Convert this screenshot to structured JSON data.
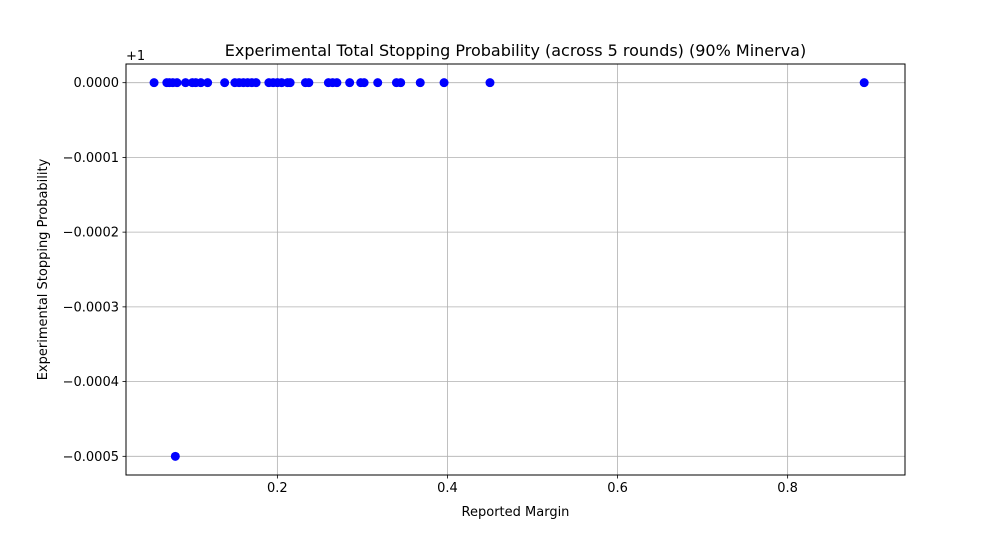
{
  "chart_data": {
    "type": "scatter",
    "title": "Experimental Total Stopping Probability (across 5 rounds) (90% Minerva)",
    "xlabel": "Reported Margin",
    "ylabel": "Experimental Stopping Probability",
    "offset_label": "+1",
    "xlim": [
      0.022,
      0.938
    ],
    "ylim": [
      -0.000525,
      2.5e-05
    ],
    "xticks": [
      0.2,
      0.4,
      0.6,
      0.8
    ],
    "xtick_labels": [
      "0.2",
      "0.4",
      "0.6",
      "0.8"
    ],
    "yticks": [
      0,
      -0.0001,
      -0.0002,
      -0.0003,
      -0.0004,
      -0.0005
    ],
    "ytick_labels": [
      "0.0000",
      "−0.0001",
      "−0.0002",
      "−0.0003",
      "−0.0004",
      "−0.0005"
    ],
    "grid": true,
    "marker_color": "#0000ff",
    "x": [
      0.055,
      0.07,
      0.073,
      0.077,
      0.082,
      0.092,
      0.1,
      0.104,
      0.11,
      0.118,
      0.138,
      0.15,
      0.155,
      0.16,
      0.165,
      0.17,
      0.175,
      0.19,
      0.195,
      0.2,
      0.205,
      0.212,
      0.215,
      0.233,
      0.237,
      0.26,
      0.265,
      0.27,
      0.285,
      0.298,
      0.302,
      0.318,
      0.34,
      0.345,
      0.368,
      0.396,
      0.45,
      0.89,
      0.08
    ],
    "y": [
      0,
      0,
      0,
      0,
      0,
      0,
      0,
      0,
      0,
      0,
      0,
      0,
      0,
      0,
      0,
      0,
      0,
      0,
      0,
      0,
      0,
      0,
      0,
      0,
      0,
      0,
      0,
      0,
      0,
      0,
      0,
      0,
      0,
      0,
      0,
      0,
      0,
      0,
      -0.0005
    ]
  }
}
